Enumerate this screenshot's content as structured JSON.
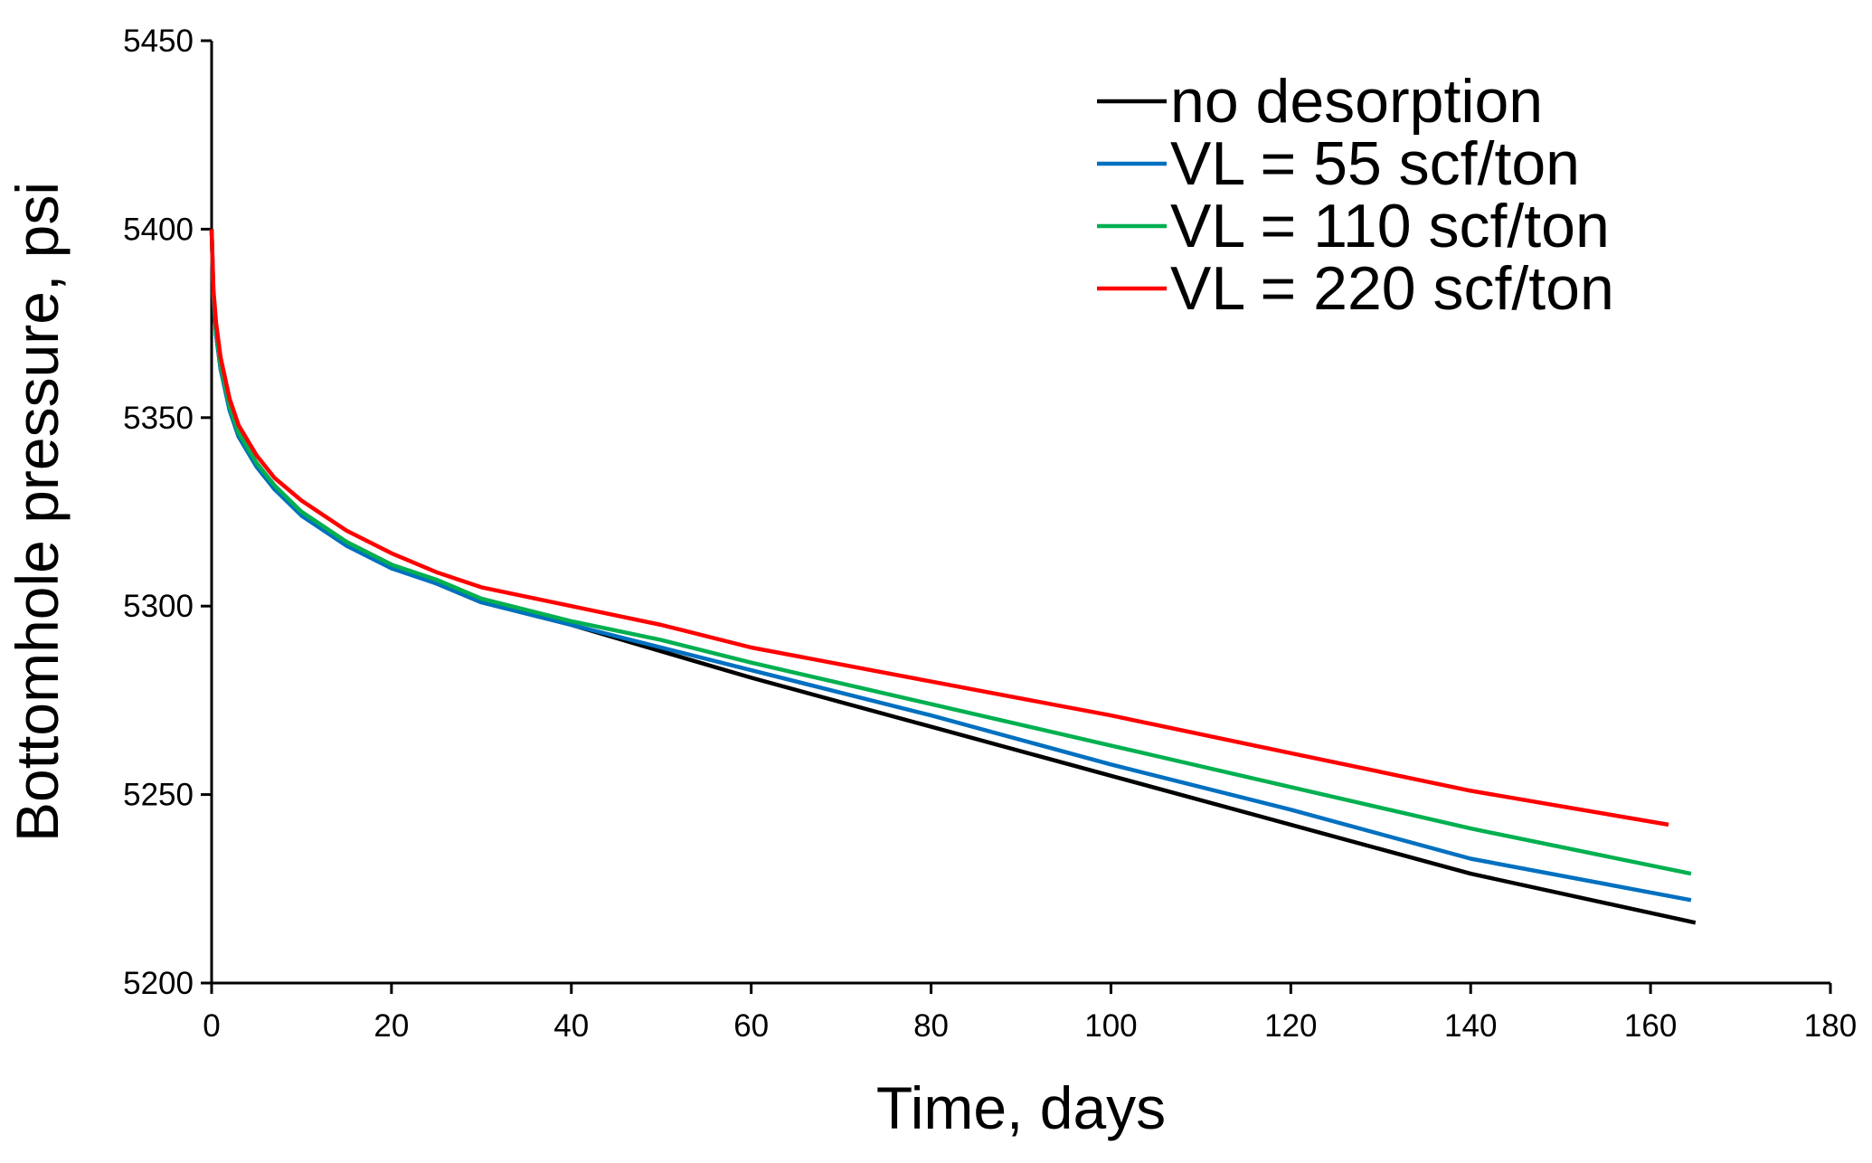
{
  "chart_data": {
    "type": "line",
    "title": "",
    "xlabel": "Time, days",
    "ylabel": "Bottomhole pressure, psi",
    "xlim": [
      0,
      180
    ],
    "ylim": [
      5200,
      5450
    ],
    "xticks": [
      0,
      20,
      40,
      60,
      80,
      100,
      120,
      140,
      160,
      180
    ],
    "yticks": [
      5200,
      5250,
      5300,
      5350,
      5400,
      5450
    ],
    "grid": false,
    "legend_position": "top-right",
    "series": [
      {
        "name": "no desorption",
        "color": "#000000",
        "points": [
          [
            0,
            5400
          ],
          [
            0.2,
            5382
          ],
          [
            0.5,
            5372
          ],
          [
            1,
            5363
          ],
          [
            2,
            5352
          ],
          [
            3,
            5345
          ],
          [
            5,
            5337
          ],
          [
            7,
            5331
          ],
          [
            10,
            5325
          ],
          [
            15,
            5317
          ],
          [
            20,
            5311
          ],
          [
            25,
            5306
          ],
          [
            30,
            5301
          ],
          [
            40,
            5295
          ],
          [
            50,
            5288
          ],
          [
            60,
            5281
          ],
          [
            80,
            5268
          ],
          [
            100,
            5255
          ],
          [
            120,
            5242
          ],
          [
            140,
            5229
          ],
          [
            165,
            5216
          ]
        ]
      },
      {
        "name": "VL = 55 scf/ton",
        "color": "#0070C0",
        "points": [
          [
            0,
            5400
          ],
          [
            0.2,
            5382
          ],
          [
            0.5,
            5372
          ],
          [
            1,
            5363
          ],
          [
            2,
            5352
          ],
          [
            3,
            5345
          ],
          [
            5,
            5337
          ],
          [
            7,
            5331
          ],
          [
            10,
            5324
          ],
          [
            15,
            5316
          ],
          [
            20,
            5310
          ],
          [
            25,
            5306
          ],
          [
            30,
            5301
          ],
          [
            40,
            5295
          ],
          [
            50,
            5289
          ],
          [
            60,
            5283
          ],
          [
            80,
            5271
          ],
          [
            100,
            5258
          ],
          [
            120,
            5246
          ],
          [
            140,
            5233
          ],
          [
            164.5,
            5222
          ]
        ]
      },
      {
        "name": "VL = 110 scf/ton",
        "color": "#00B050",
        "points": [
          [
            0,
            5400
          ],
          [
            0.2,
            5383
          ],
          [
            0.5,
            5373
          ],
          [
            1,
            5364
          ],
          [
            2,
            5353
          ],
          [
            3,
            5346
          ],
          [
            5,
            5338
          ],
          [
            7,
            5332
          ],
          [
            10,
            5325
          ],
          [
            15,
            5317
          ],
          [
            20,
            5311
          ],
          [
            25,
            5307
          ],
          [
            30,
            5302
          ],
          [
            40,
            5296
          ],
          [
            50,
            5291
          ],
          [
            60,
            5285
          ],
          [
            80,
            5274
          ],
          [
            100,
            5263
          ],
          [
            120,
            5252
          ],
          [
            140,
            5241
          ],
          [
            164.5,
            5229
          ]
        ]
      },
      {
        "name": "VL = 220 scf/ton",
        "color": "#FF0000",
        "points": [
          [
            0,
            5400
          ],
          [
            0.2,
            5384
          ],
          [
            0.5,
            5375
          ],
          [
            1,
            5366
          ],
          [
            2,
            5355
          ],
          [
            3,
            5348
          ],
          [
            5,
            5340
          ],
          [
            7,
            5334
          ],
          [
            10,
            5328
          ],
          [
            15,
            5320
          ],
          [
            20,
            5314
          ],
          [
            25,
            5309
          ],
          [
            30,
            5305
          ],
          [
            40,
            5300
          ],
          [
            50,
            5295
          ],
          [
            60,
            5289
          ],
          [
            80,
            5280
          ],
          [
            100,
            5271
          ],
          [
            120,
            5261
          ],
          [
            140,
            5251
          ],
          [
            162,
            5242
          ]
        ]
      }
    ]
  }
}
